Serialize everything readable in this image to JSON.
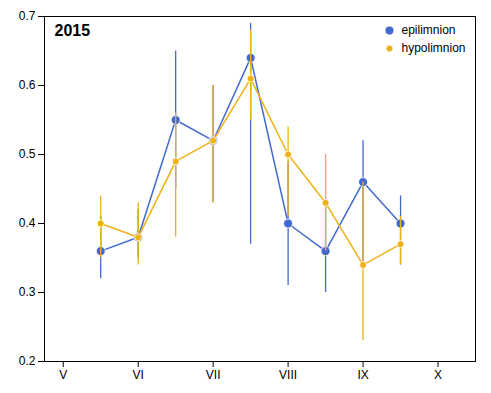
{
  "chart_data": {
    "type": "line",
    "title": "2015",
    "x": [
      1.5,
      2.0,
      2.5,
      3.0,
      3.5,
      4.0,
      4.5,
      5.0,
      5.5
    ],
    "series": [
      {
        "name": "epilimnion",
        "marker": "circle",
        "line_style": "solid",
        "values": [
          0.36,
          0.38,
          0.55,
          0.52,
          0.64,
          0.4,
          0.36,
          0.46,
          0.4
        ],
        "yerr_lo": [
          0.04,
          0.03,
          0.1,
          0.09,
          0.27,
          0.09,
          0.06,
          0.12,
          0.06
        ],
        "yerr_hi": [
          0.05,
          0.04,
          0.1,
          0.08,
          0.05,
          0.09,
          0.07,
          0.06,
          0.04
        ]
      },
      {
        "name": "hypolimnion",
        "marker": "circle",
        "line_style": "solid",
        "values": [
          0.4,
          0.38,
          0.49,
          0.52,
          0.61,
          0.5,
          0.43,
          0.34,
          0.37
        ],
        "yerr_lo": [
          0.05,
          0.04,
          0.11,
          0.09,
          0.06,
          0.09,
          0.07,
          0.11,
          0.03
        ],
        "yerr_hi": [
          0.04,
          0.05,
          0.07,
          0.08,
          0.07,
          0.04,
          0.07,
          0.12,
          0.04
        ]
      }
    ],
    "xlim": [
      0.75,
      6.5
    ],
    "xticks": [
      {
        "value": 1,
        "label": "V"
      },
      {
        "value": 2,
        "label": "VI"
      },
      {
        "value": 3,
        "label": "VII"
      },
      {
        "value": 4,
        "label": "VIII"
      },
      {
        "value": 5,
        "label": "IX"
      },
      {
        "value": 6,
        "label": "X"
      }
    ],
    "ylim": [
      0.2,
      0.7
    ],
    "yticks": [
      0.2,
      0.3,
      0.4,
      0.5,
      0.6,
      0.7
    ],
    "grid": false,
    "legend": "upper right"
  }
}
